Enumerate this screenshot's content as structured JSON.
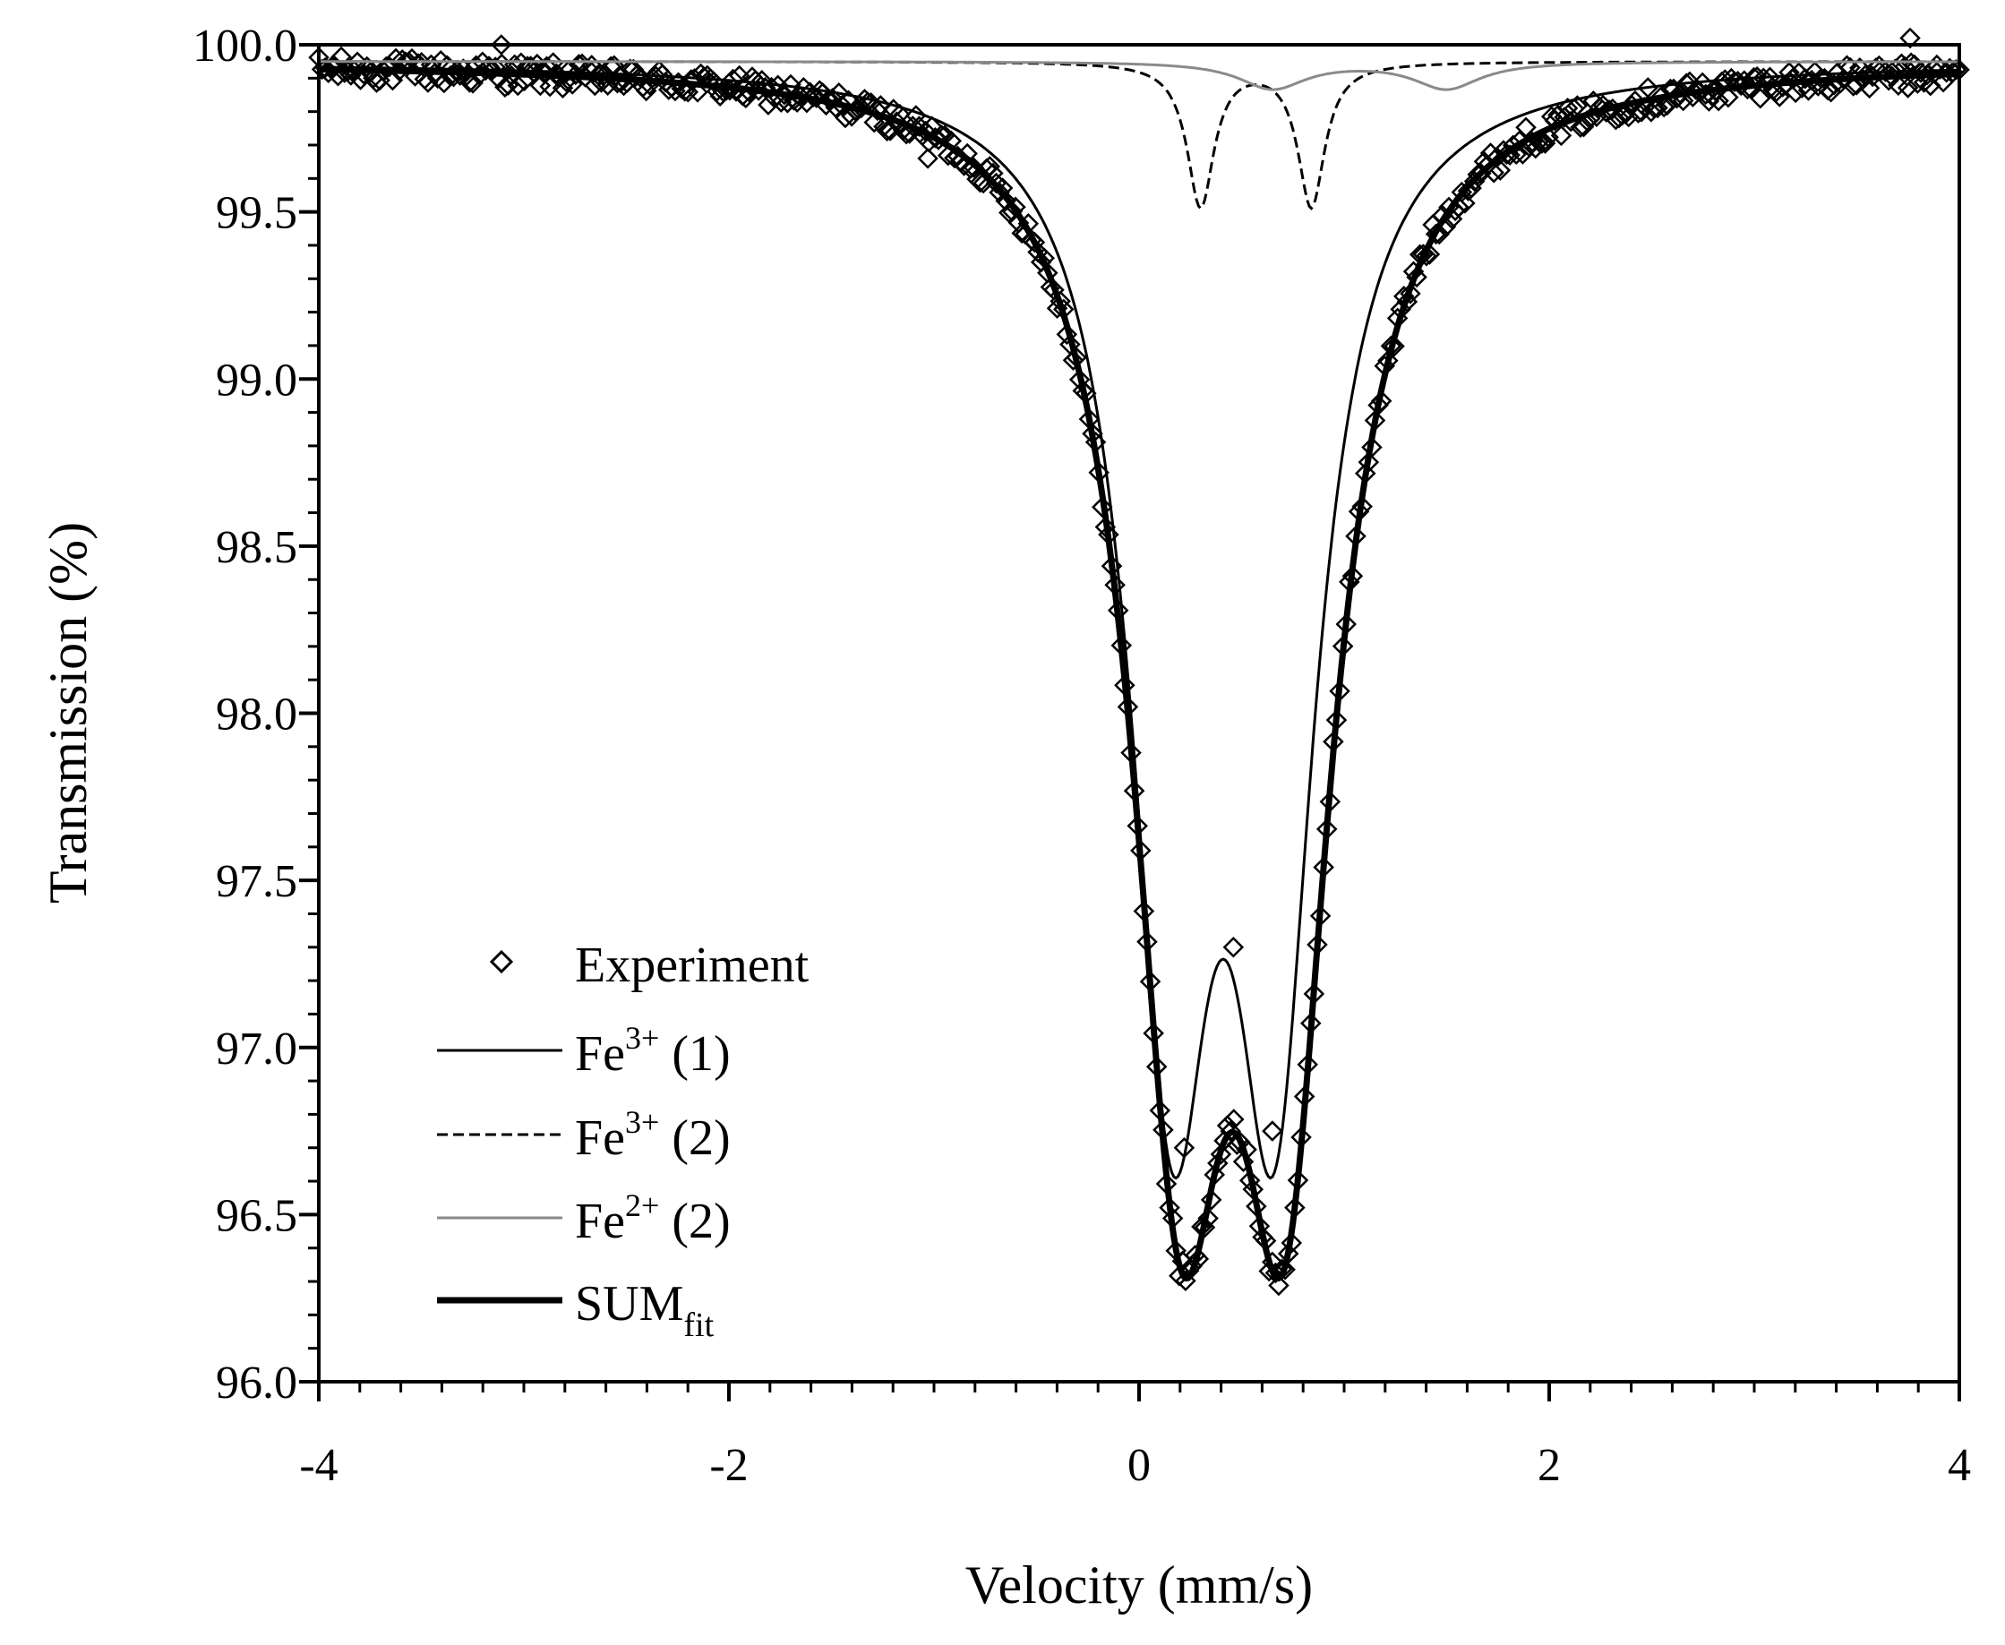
{
  "chart_data": {
    "type": "scatter",
    "xlabel": "Velocity (mm/s)",
    "ylabel": "Transmission (%)",
    "xlim": [
      -4,
      4
    ],
    "ylim": [
      96.0,
      100.0
    ],
    "x_ticks": [
      -4,
      -2,
      0,
      2,
      4
    ],
    "x_tick_labels": [
      "-4",
      "-2",
      "0",
      "2",
      "4"
    ],
    "y_ticks": [
      96.0,
      96.5,
      97.0,
      97.5,
      98.0,
      98.5,
      99.0,
      99.5,
      100.0
    ],
    "y_tick_labels": [
      "96.0",
      "96.5",
      "97.0",
      "97.5",
      "98.0",
      "98.5",
      "99.0",
      "99.5",
      "100.0"
    ],
    "grid": false,
    "legend": {
      "placement": "bottom-left",
      "items": [
        {
          "key": "experiment",
          "text": "Experiment",
          "style": "diamond"
        },
        {
          "key": "fe3_1",
          "base": "Fe",
          "sup": "3+",
          "suffix": "(1)",
          "style": "thin-solid"
        },
        {
          "key": "fe3_2",
          "base": "Fe",
          "sup": "3+",
          "suffix": "(2)",
          "style": "dashed"
        },
        {
          "key": "fe2_2",
          "base": "Fe",
          "sup": "2+",
          "suffix": "(2)",
          "style": "gray-solid"
        },
        {
          "key": "sum",
          "base": "SUM",
          "sub": "fit",
          "style": "thick-solid"
        }
      ]
    },
    "baseline": 99.95,
    "components": [
      {
        "name": "Fe3+(1)",
        "style": "thin-solid",
        "peaks": [
          {
            "center": 0.16,
            "depth": 2.8,
            "hwhm": 0.24
          },
          {
            "center": 0.66,
            "depth": 2.8,
            "hwhm": 0.24
          }
        ]
      },
      {
        "name": "Fe3+(2)",
        "style": "dashed",
        "peaks": [
          {
            "center": 0.3,
            "depth": 0.43,
            "hwhm": 0.08
          },
          {
            "center": 0.84,
            "depth": 0.43,
            "hwhm": 0.08
          }
        ]
      },
      {
        "name": "Fe2+(2)",
        "style": "gray-solid",
        "peaks": [
          {
            "center": 0.65,
            "depth": 0.08,
            "hwhm": 0.2
          },
          {
            "center": 1.5,
            "depth": 0.08,
            "hwhm": 0.2
          }
        ]
      }
    ],
    "sum_fit": {
      "name": "SUMfit",
      "style": "thick-solid",
      "peaks": [
        {
          "center": 0.2,
          "depth": 2.93,
          "hwhm": 0.28
        },
        {
          "center": 0.71,
          "depth": 2.93,
          "hwhm": 0.28
        }
      ]
    },
    "experiment": {
      "x_min": -4.0,
      "x_max": 4.0,
      "n_points": 512,
      "noise_amplitude": 0.04,
      "outliers": [
        {
          "x": -1.03,
          "y": 99.66
        },
        {
          "x": -3.11,
          "y": 100.0
        },
        {
          "x": 3.76,
          "y": 100.02
        },
        {
          "x": 0.22,
          "y": 96.7
        },
        {
          "x": 0.65,
          "y": 96.75
        },
        {
          "x": 0.46,
          "y": 97.3
        }
      ]
    }
  }
}
